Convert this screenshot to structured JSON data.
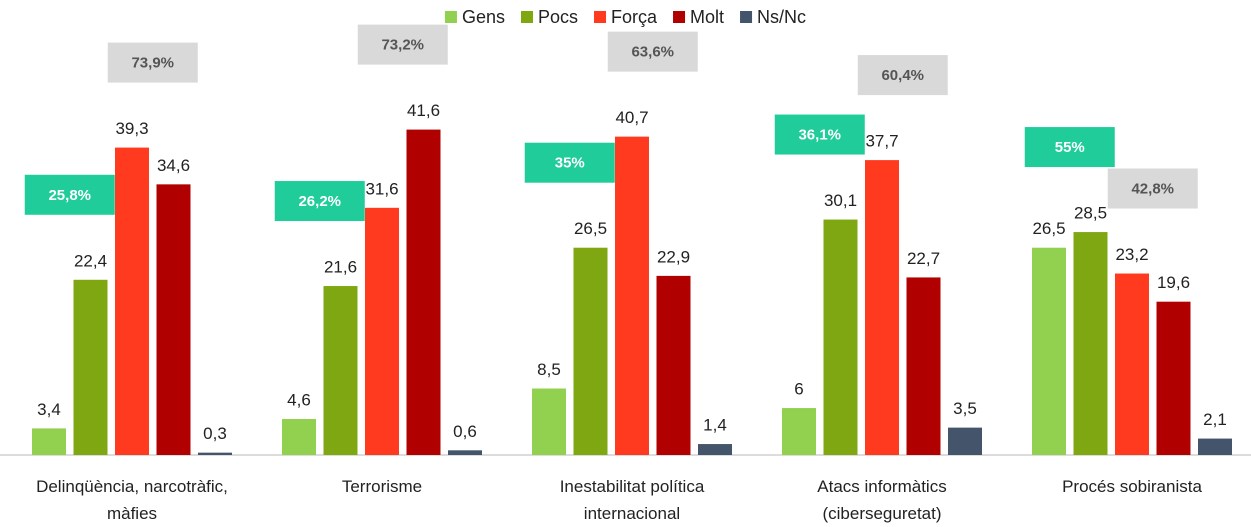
{
  "chart_data": {
    "type": "bar",
    "categories": [
      "Delinqüència, narcotràfic, màfies",
      "Terrorisme",
      "Inestabilitat política internacional",
      "Atacs informàtics (ciberseguretat)",
      "Procés sobiranista"
    ],
    "series": [
      {
        "name": "Gens",
        "color": "#92d050",
        "values": [
          3.4,
          4.6,
          8.5,
          6,
          26.5
        ],
        "value_labels": [
          "3,4",
          "4,6",
          "8,5",
          "6",
          "26,5"
        ]
      },
      {
        "name": "Pocs",
        "color": "#7fa712",
        "values": [
          22.4,
          21.6,
          26.5,
          30.1,
          28.5
        ],
        "value_labels": [
          "22,4",
          "21,6",
          "26,5",
          "30,1",
          "28,5"
        ]
      },
      {
        "name": "Força",
        "color": "#ff3a1e",
        "values": [
          39.3,
          31.6,
          40.7,
          37.7,
          23.2
        ],
        "value_labels": [
          "39,3",
          "31,6",
          "40,7",
          "37,7",
          "23,2"
        ]
      },
      {
        "name": "Molt",
        "color": "#b00000",
        "values": [
          34.6,
          41.6,
          22.9,
          22.7,
          19.6
        ],
        "value_labels": [
          "34,6",
          "41,6",
          "22,9",
          "22,7",
          "19,6"
        ]
      },
      {
        "name": "Ns/Nc",
        "color": "#44546a",
        "values": [
          0.3,
          0.6,
          1.4,
          3.5,
          2.1
        ],
        "value_labels": [
          "0,3",
          "0,6",
          "1,4",
          "3,5",
          "2,1"
        ]
      }
    ],
    "annotations": [
      [
        "25,8%",
        "73,9%"
      ],
      [
        "26,2%",
        "73,2%"
      ],
      [
        "35%",
        "63,6%"
      ],
      [
        "36,1%",
        "60,4%"
      ],
      [
        "55%",
        "42,8%"
      ]
    ],
    "annotation_colors": [
      "#1fcc9a",
      "#d9d9d9"
    ],
    "ylim": [
      0,
      45
    ],
    "legend": "top"
  }
}
